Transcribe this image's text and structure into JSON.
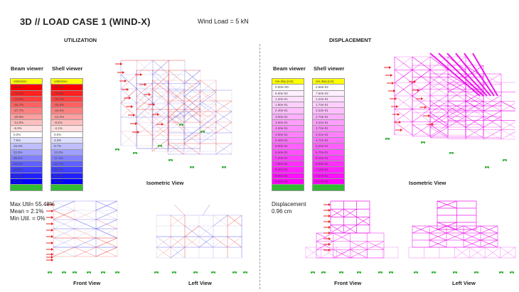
{
  "title": "3D // LOAD CASE 1 (WIND-X)",
  "wind_load": "Wind Load = 5 kN",
  "utilization": {
    "heading": "UTILIZATION",
    "beam_label": "Beam viewer",
    "shell_label": "Shell viewer",
    "beam_header": "utilization",
    "shell_header": "utilization",
    "beam_values": [
      "-55.4%",
      "-48.5%",
      "-41.6%",
      "-34.7%",
      "-27.7%",
      "-20.8%",
      "-13.9%",
      "-6.9%",
      "0.0%",
      "7.6%",
      "15.3%",
      "22.9%",
      "30.5%",
      "38.2%",
      "45.8%",
      "53.4%",
      "61.1%"
    ],
    "shell_values": [
      "-33.0%",
      "-28.9%",
      "-24.7%",
      "-20.6%",
      "-16.5%",
      "-12.4%",
      "-8.2%",
      "-4.1%",
      "0.0%",
      "4.3%",
      "8.7%",
      "13.0%",
      "17.4%",
      "21.7%",
      "26.1%",
      "30.4%",
      "34.8%"
    ],
    "iso_label": "Isometric View",
    "front_label": "Front View",
    "left_label": "Left View",
    "stats": [
      "Max Util= 55.48%",
      "Mean = 2.1%",
      "Min Util. = 0%"
    ],
    "neg_color": "#ff0000",
    "pos_color": "#0000ff"
  },
  "displacement": {
    "heading": "DISPLACEMENT",
    "beam_label": "Beam viewer",
    "shell_label": "Shell viewer",
    "beam_header": "res.disp.[cm]",
    "shell_header": "res.disp.[cm]",
    "beam_values": [
      "0.00e+00",
      "6.00e-02",
      "1.20e-01",
      "1.80e-01",
      "2.40e-01",
      "3.00e-01",
      "3.60e-01",
      "4.20e-01",
      "4.80e-01",
      "5.40e-01",
      "6.00e-01",
      "6.60e-01",
      "7.20e-01",
      "7.80e-01",
      "8.40e-01",
      "9.00e-01",
      "9.60e-01"
    ],
    "shell_values": [
      "2.56e-02",
      "7.50e-02",
      "1.24e-01",
      "1.74e-01",
      "2.23e-01",
      "2.73e-01",
      "3.22e-01",
      "3.72e-01",
      "4.21e-01",
      "4.71e-01",
      "5.20e-01",
      "5.70e-01",
      "6.19e-01",
      "6.68e-01",
      "7.18e-01",
      "7.67e-01",
      "8.17e-01"
    ],
    "iso_label": "Isometric View",
    "front_label": "Front View",
    "left_label": "Left View",
    "stats": [
      "Displacement",
      "0.96 cm"
    ],
    "color": "#ff00ff"
  }
}
